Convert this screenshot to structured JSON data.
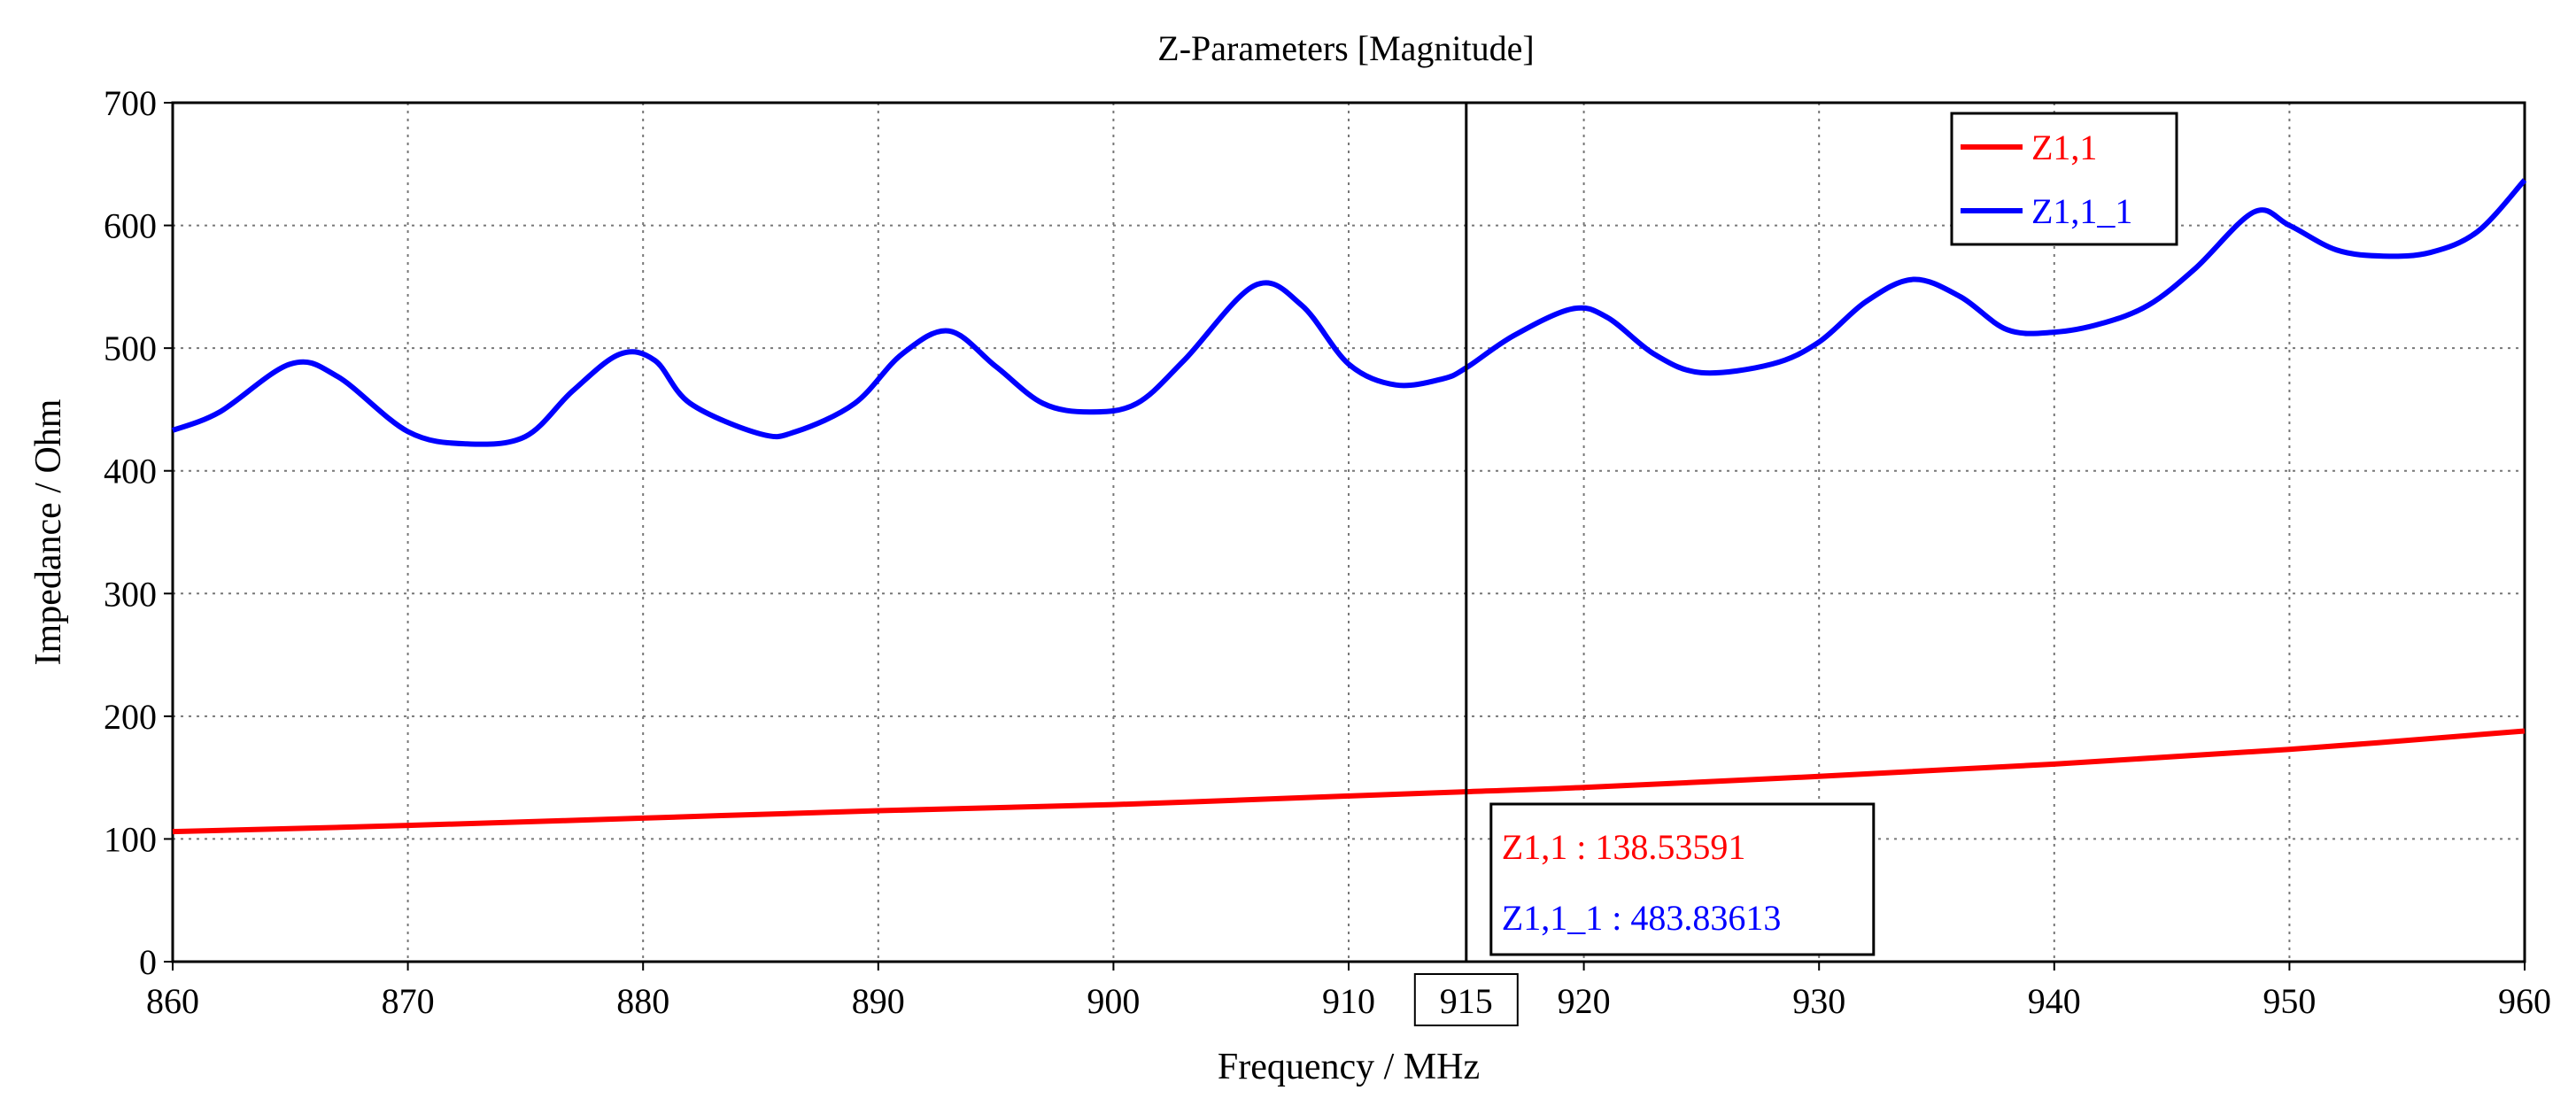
{
  "chart_data": {
    "type": "line",
    "title": "Z-Parameters [Magnitude]",
    "xlabel": "Frequency / MHz",
    "ylabel": "Impedance / Ohm",
    "xlim": [
      860,
      960
    ],
    "ylim": [
      0,
      700
    ],
    "xticks": [
      "860",
      "870",
      "880",
      "890",
      "900",
      "910",
      "920",
      "930",
      "940",
      "950",
      "960"
    ],
    "yticks": [
      "0",
      "100",
      "200",
      "300",
      "400",
      "500",
      "600",
      "700"
    ],
    "grid": true,
    "legend_position": "top-right",
    "colors": {
      "Z1,1": "#ff0000",
      "Z1,1_1": "#0000ff",
      "marker": "#000000"
    },
    "series": [
      {
        "name": "Z1,1",
        "color": "#ff0000",
        "x": [
          860,
          870,
          880,
          890,
          900,
          910,
          915,
          920,
          930,
          940,
          950,
          960
        ],
        "y": [
          106,
          111,
          117,
          123,
          128,
          135,
          138.5,
          142,
          151,
          161,
          173,
          188
        ]
      },
      {
        "name": "Z1,1_1",
        "color": "#0000ff",
        "x": [
          860,
          862,
          865,
          867,
          870,
          872.5,
          875,
          877,
          879,
          880.5,
          882,
          885,
          886.5,
          889,
          891,
          893,
          895,
          897,
          899,
          901,
          903,
          906,
          908,
          910,
          912,
          914,
          915,
          917,
          919.5,
          921,
          923,
          925,
          928,
          930,
          932,
          934,
          936,
          938,
          940,
          942,
          944,
          946,
          948.5,
          950,
          952,
          954,
          956,
          958,
          960
        ],
        "y": [
          433,
          448,
          487,
          477,
          432,
          422,
          428,
          465,
          495,
          490,
          455,
          430,
          432,
          455,
          495,
          514,
          485,
          455,
          448,
          455,
          490,
          551,
          535,
          487,
          470,
          475,
          484,
          510,
          532,
          525,
          495,
          480,
          487,
          505,
          538,
          556,
          542,
          515,
          513,
          520,
          535,
          565,
          611,
          600,
          580,
          575,
          578,
          595,
          637
        ]
      }
    ],
    "marker": {
      "x": 915,
      "x_label": "915",
      "readouts": [
        {
          "series": "Z1,1",
          "text": "Z1,1 : 138.53591",
          "value": 138.53591
        },
        {
          "series": "Z1,1_1",
          "text": "Z1,1_1 : 483.83613",
          "value": 483.83613
        }
      ]
    }
  }
}
